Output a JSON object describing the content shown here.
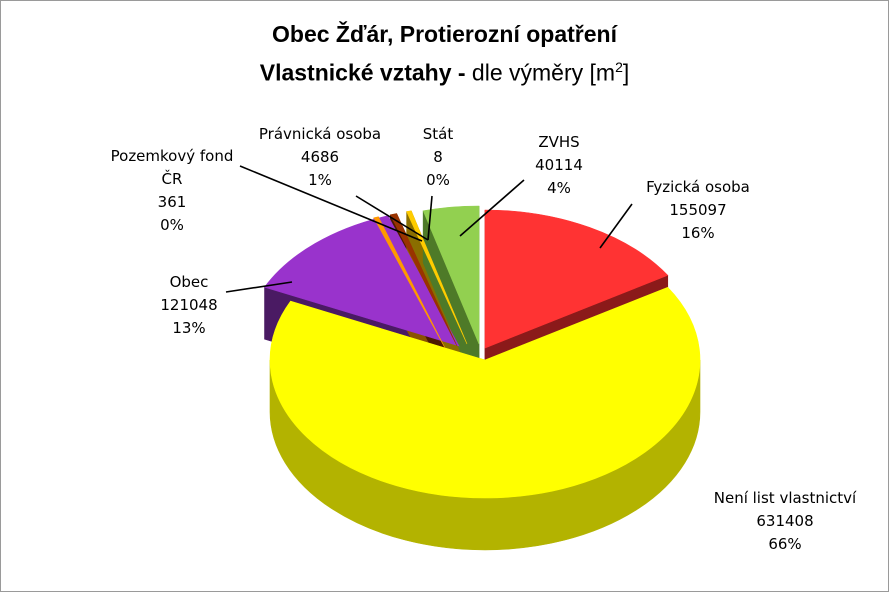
{
  "title": {
    "line1": "Obec Žďár, Protierozní opatření",
    "line2_bold": "Vlastnické vztahy -",
    "line2_rest": " dle výměry  [m",
    "superscript": "2",
    "closing": "]"
  },
  "chart_data": {
    "type": "pie",
    "variant": "3d-exploded",
    "unit": "m²",
    "slices": [
      {
        "name": "Fyzická osoba",
        "value": 155097,
        "percent": "16%",
        "color": "#FF3333",
        "side_color": "#8B1A1A"
      },
      {
        "name": "Není list vlastnictví",
        "value": 631408,
        "percent": "66%",
        "color": "#FFFF00",
        "side_color": "#B3B300"
      },
      {
        "name": "Obec",
        "value": 121048,
        "percent": "13%",
        "color": "#9933CC",
        "side_color": "#4A1A63"
      },
      {
        "name": "Pozemkový fond ČR",
        "value": 361,
        "percent": "0%",
        "color": "#FF9900",
        "side_color": "#8A5200"
      },
      {
        "name": "Právnická osoba",
        "value": 4686,
        "percent": "1%",
        "color": "#993300",
        "side_color": "#4D1A00"
      },
      {
        "name": "Stát",
        "value": 8,
        "percent": "0%",
        "color": "#FFCC00",
        "side_color": "#8A6E00"
      },
      {
        "name": "ZVHS",
        "value": 40114,
        "percent": "4%",
        "color": "#92D050",
        "side_color": "#4E7A28"
      }
    ],
    "legend": "none"
  }
}
